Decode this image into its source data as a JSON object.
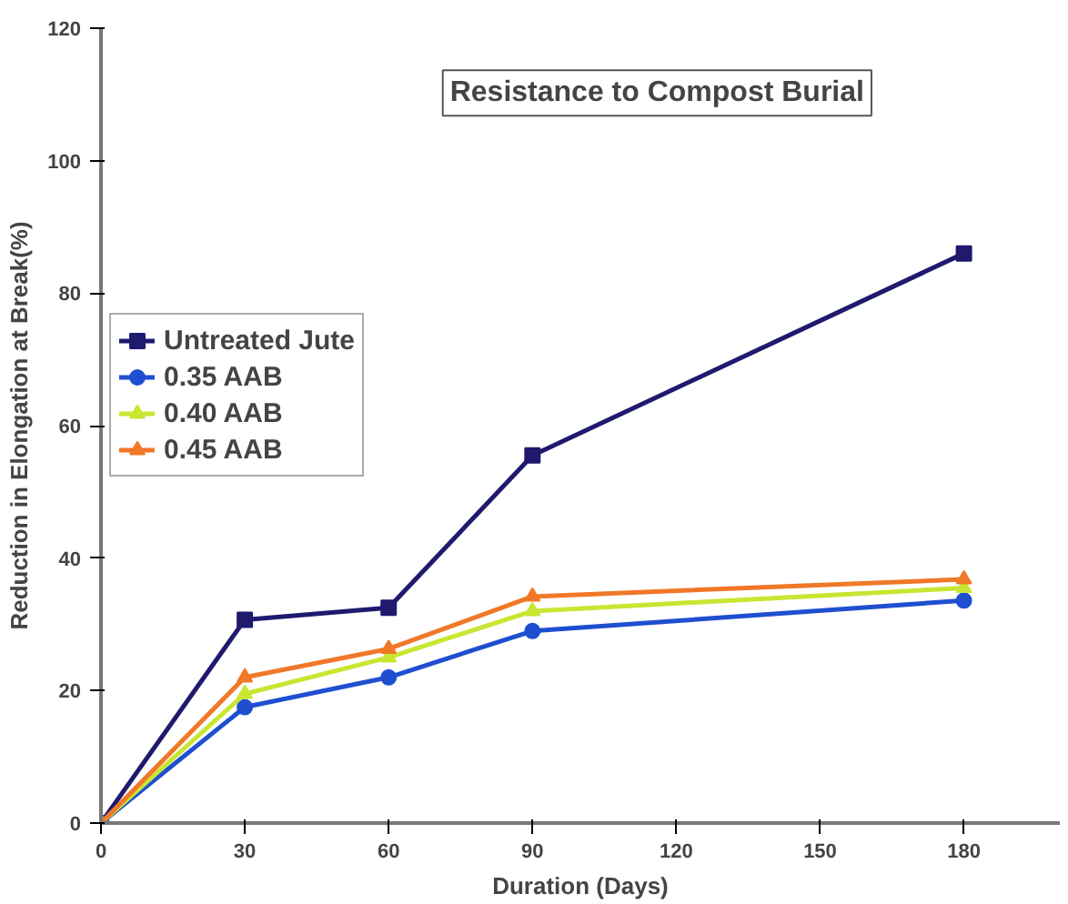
{
  "chart_data": {
    "type": "line",
    "title": "Resistance to Compost Burial",
    "xlabel": "Duration (Days)",
    "ylabel": "Reduction in Elongation at Break(%)",
    "x": [
      0,
      30,
      60,
      90,
      180
    ],
    "series": [
      {
        "name": "Untreated Jute",
        "color": "#1f1a6e",
        "marker": "square",
        "values": [
          0,
          30.7,
          32.5,
          55.5,
          86
        ]
      },
      {
        "name": "0.35 AAB",
        "color": "#1f4fd0",
        "marker": "circle",
        "values": [
          0,
          17.5,
          22,
          29,
          33.6
        ]
      },
      {
        "name": "0.40 AAB",
        "color": "#c8e632",
        "marker": "triangle",
        "values": [
          0,
          19.5,
          25,
          32,
          35.5
        ]
      },
      {
        "name": "0.45 AAB",
        "color": "#f07828",
        "marker": "triangle",
        "values": [
          0,
          22,
          26.3,
          34.2,
          36.8
        ]
      }
    ],
    "xlim": [
      0,
      200
    ],
    "xticks": [
      0,
      30,
      60,
      90,
      120,
      150,
      180
    ],
    "ylim": [
      0,
      120
    ],
    "yticks": [
      0,
      20,
      40,
      60,
      80,
      100,
      120
    ],
    "grid": false,
    "legend": "top left",
    "line_style": "solid"
  }
}
